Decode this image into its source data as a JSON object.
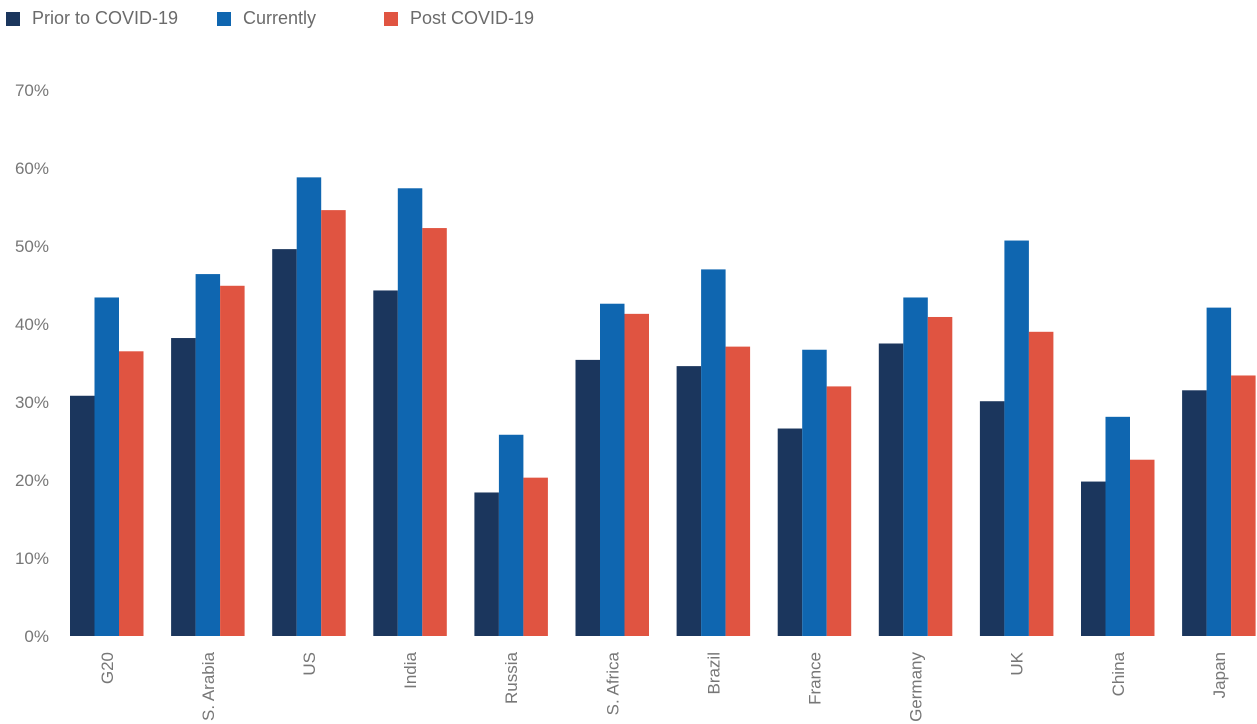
{
  "chart_data": {
    "type": "bar",
    "categories": [
      "G20",
      "S. Arabia",
      "US",
      "India",
      "Russia",
      "S. Africa",
      "Brazil",
      "France",
      "Germany",
      "UK",
      "China",
      "Japan"
    ],
    "series": [
      {
        "name": "Prior to COVID-19",
        "color": "#1b365d",
        "values": [
          30.8,
          38.2,
          49.6,
          44.3,
          18.4,
          35.4,
          34.6,
          26.6,
          37.5,
          30.1,
          19.8,
          31.5
        ]
      },
      {
        "name": "Currently",
        "color": "#0f66b0",
        "values": [
          43.4,
          46.4,
          58.8,
          57.4,
          25.8,
          42.6,
          47.0,
          36.7,
          43.4,
          50.7,
          28.1,
          42.1
        ]
      },
      {
        "name": "Post COVID-19",
        "color": "#e05441",
        "values": [
          36.5,
          44.9,
          54.6,
          52.3,
          20.3,
          41.3,
          37.1,
          32.0,
          40.9,
          39.0,
          22.6,
          33.4
        ]
      }
    ],
    "yticks": [
      "0%",
      "10%",
      "20%",
      "30%",
      "40%",
      "50%",
      "60%",
      "70%"
    ],
    "ylim": [
      0,
      70
    ],
    "grid": false,
    "legend_position": "top-left",
    "title": "",
    "xlabel": "",
    "ylabel": ""
  }
}
